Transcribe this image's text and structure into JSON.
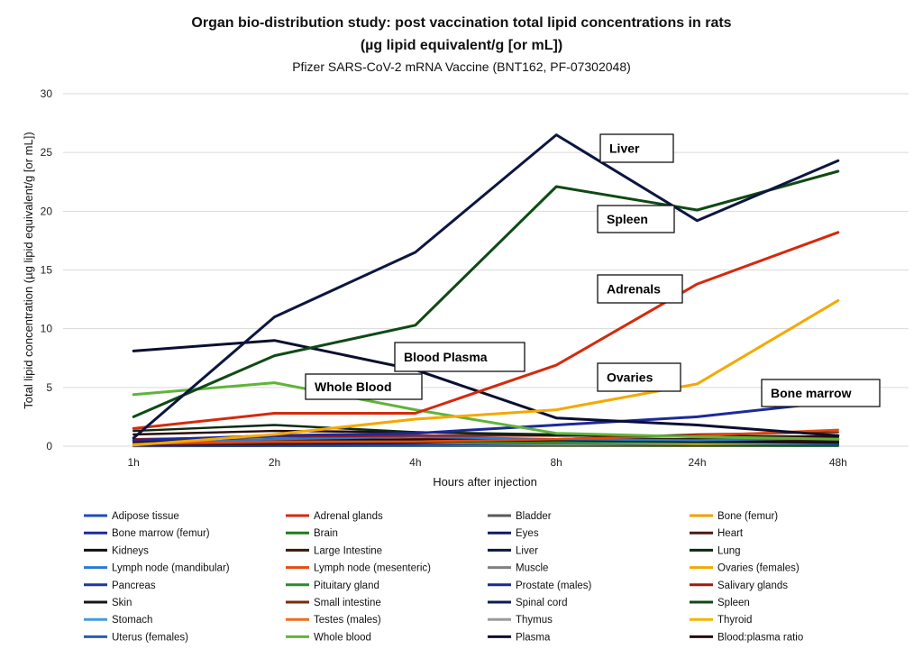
{
  "chart_data": {
    "type": "line",
    "title": "Organ bio-distribution study: post vaccination total lipid concentrations in rats",
    "title_line2": "(µg lipid equivalent/g [or mL])",
    "subtitle": "Pfizer SARS-CoV-2 mRNA Vaccine (BNT162, PF-07302048)",
    "xlabel": "Hours after injection",
    "ylabel": "Total lipid concentration (µg lipid equivalent/g [or mL])",
    "ylim": [
      0,
      30
    ],
    "yticks": [
      0,
      5,
      10,
      15,
      20,
      25,
      30
    ],
    "ytick_labels": [
      "0",
      "5",
      "10",
      "15",
      "20",
      "25",
      "30"
    ],
    "grid": "horizontal",
    "legend_position": "bottom",
    "categories": [
      "1h",
      "2h",
      "4h",
      "8h",
      "24h",
      "48h"
    ],
    "series": [
      {
        "name": "Adipose tissue",
        "color": "#1f4fb4",
        "values": [
          0.06,
          0.05,
          0.09,
          0.27,
          0.15,
          0.16
        ]
      },
      {
        "name": "Adrenal glands",
        "color": "#d42a0c",
        "values": [
          1.5,
          2.8,
          2.8,
          6.9,
          13.8,
          18.2
        ]
      },
      {
        "name": "Bladder",
        "color": "#5a5a5a",
        "values": [
          0.04,
          0.05,
          0.05,
          0.05,
          0.04,
          0.04
        ]
      },
      {
        "name": "Bone (femur)",
        "color": "#f0a000",
        "values": [
          0.1,
          0.1,
          0.12,
          0.2,
          0.2,
          0.2
        ]
      },
      {
        "name": "Bone marrow (femur)",
        "color": "#1c2a9a",
        "values": [
          0.5,
          0.9,
          1.1,
          1.8,
          2.5,
          3.8
        ]
      },
      {
        "name": "Brain",
        "color": "#1e7a1e",
        "values": [
          0.05,
          0.05,
          0.04,
          0.03,
          0.02,
          0.02
        ]
      },
      {
        "name": "Eyes",
        "color": "#101a60",
        "values": [
          0.01,
          0.02,
          0.03,
          0.04,
          0.02,
          0.03
        ]
      },
      {
        "name": "Heart",
        "color": "#4a1a14",
        "values": [
          0.3,
          0.5,
          0.6,
          0.6,
          0.5,
          0.4
        ]
      },
      {
        "name": "Kidneys",
        "color": "#101010",
        "values": [
          0.4,
          0.6,
          0.5,
          0.6,
          0.4,
          0.4
        ]
      },
      {
        "name": "Large Intestine",
        "color": "#3a1a08",
        "values": [
          0.1,
          0.2,
          0.3,
          0.6,
          0.6,
          0.5
        ]
      },
      {
        "name": "Liver",
        "color": "#0c1640",
        "values": [
          0.7,
          11.0,
          16.5,
          26.5,
          19.2,
          24.3
        ]
      },
      {
        "name": "Lung",
        "color": "#0c2a12",
        "values": [
          1.3,
          1.8,
          1.2,
          1.0,
          0.8,
          0.6
        ]
      },
      {
        "name": "Lymph node (mandibular)",
        "color": "#2a7ad4",
        "values": [
          0.2,
          0.6,
          0.8,
          0.6,
          0.5,
          0.7
        ]
      },
      {
        "name": "Lymph node (mesenteric)",
        "color": "#e64a10",
        "values": [
          0.2,
          0.4,
          0.4,
          0.6,
          0.9,
          1.4
        ]
      },
      {
        "name": "Muscle",
        "color": "#808080",
        "values": [
          0.1,
          0.1,
          0.1,
          0.2,
          0.1,
          0.1
        ]
      },
      {
        "name": "Ovaries (females)",
        "color": "#f5a800",
        "values": [
          0.1,
          1.0,
          2.3,
          3.1,
          5.3,
          12.4
        ]
      },
      {
        "name": "Pancreas",
        "color": "#1a3a9a",
        "values": [
          0.1,
          0.1,
          0.2,
          0.3,
          0.3,
          0.2
        ]
      },
      {
        "name": "Pituitary gland",
        "color": "#2a8a2a",
        "values": [
          0.3,
          0.4,
          0.4,
          0.3,
          0.3,
          0.3
        ]
      },
      {
        "name": "Prostate (males)",
        "color": "#1a2a8a",
        "values": [
          0.06,
          0.1,
          0.1,
          0.2,
          0.1,
          0.1
        ]
      },
      {
        "name": "Salivary glands",
        "color": "#a01a10",
        "values": [
          0.6,
          0.8,
          0.9,
          0.9,
          0.9,
          0.8
        ]
      },
      {
        "name": "Skin",
        "color": "#151515",
        "values": [
          0.1,
          0.2,
          0.4,
          0.5,
          0.4,
          0.3
        ]
      },
      {
        "name": "Small intestine",
        "color": "#7a2a0a",
        "values": [
          0.2,
          0.3,
          0.4,
          0.6,
          1.0,
          1.2
        ]
      },
      {
        "name": "Spinal cord",
        "color": "#0e1a50",
        "values": [
          0.1,
          0.1,
          0.1,
          0.1,
          0.1,
          0.1
        ]
      },
      {
        "name": "Spleen",
        "color": "#0f4a14",
        "values": [
          2.5,
          7.7,
          10.3,
          22.1,
          20.1,
          23.4
        ]
      },
      {
        "name": "Stomach",
        "color": "#4a9ad8",
        "values": [
          0.1,
          0.1,
          0.2,
          0.2,
          0.2,
          0.2
        ]
      },
      {
        "name": "Testes (males)",
        "color": "#f06a20",
        "values": [
          0.04,
          0.06,
          0.07,
          0.08,
          0.07,
          0.1
        ]
      },
      {
        "name": "Thymus",
        "color": "#9a9a9a",
        "values": [
          0.1,
          0.1,
          0.1,
          0.2,
          0.2,
          0.2
        ]
      },
      {
        "name": "Thyroid",
        "color": "#f5b400",
        "values": [
          0.2,
          0.3,
          0.3,
          0.3,
          0.2,
          0.3
        ]
      },
      {
        "name": "Uterus (females)",
        "color": "#2a5ab4",
        "values": [
          0.04,
          0.05,
          0.05,
          0.1,
          0.1,
          0.1
        ]
      },
      {
        "name": "Whole blood",
        "color": "#5fb43a",
        "values": [
          4.4,
          5.4,
          3.1,
          1.1,
          0.8,
          0.6
        ]
      },
      {
        "name": "Plasma",
        "color": "#0a0f30",
        "values": [
          8.1,
          9.0,
          6.5,
          2.4,
          1.8,
          0.9
        ]
      },
      {
        "name": "Blood:plasma ratio",
        "color": "#2a0a06",
        "values": [
          1.0,
          1.3,
          1.2,
          0.9,
          0.9,
          0.8
        ]
      }
    ],
    "annotations": [
      {
        "text": "Liver"
      },
      {
        "text": "Spleen"
      },
      {
        "text": "Adrenals"
      },
      {
        "text": "Blood Plasma"
      },
      {
        "text": "Ovaries"
      },
      {
        "text": "Whole Blood"
      },
      {
        "text": "Bone marrow"
      }
    ]
  }
}
